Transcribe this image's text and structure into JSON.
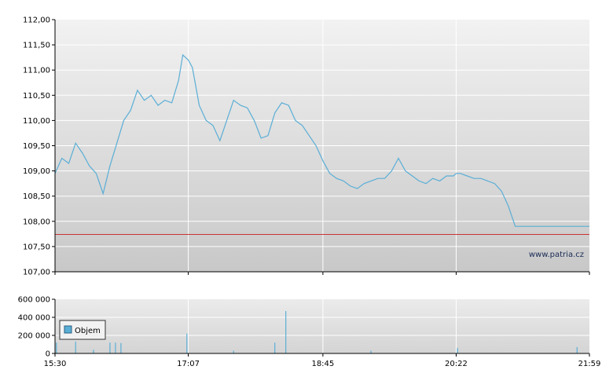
{
  "chart_data": [
    {
      "type": "line",
      "title": "",
      "xlabel": "",
      "ylabel": "",
      "ylim": [
        107.0,
        112.0
      ],
      "y_ticks": [
        "107,00",
        "107,50",
        "108,00",
        "108,50",
        "109,00",
        "109,50",
        "110,00",
        "110,50",
        "111,00",
        "111,50",
        "112,00"
      ],
      "x_ticks": [
        "15:30",
        "17:07",
        "18:45",
        "20:22",
        "21:59"
      ],
      "grid": true,
      "reference_line": {
        "value": 107.74,
        "color": "#cc3333"
      },
      "watermark": "www.patria.cz",
      "series": [
        {
          "color": "#5aaed6",
          "x": [
            "15:30",
            "15:35",
            "15:40",
            "15:45",
            "15:50",
            "15:55",
            "16:00",
            "16:05",
            "16:10",
            "16:15",
            "16:20",
            "16:25",
            "16:30",
            "16:35",
            "16:40",
            "16:45",
            "16:50",
            "16:55",
            "17:00",
            "17:03",
            "17:07",
            "17:10",
            "17:15",
            "17:20",
            "17:25",
            "17:30",
            "17:35",
            "17:40",
            "17:45",
            "17:50",
            "17:55",
            "18:00",
            "18:05",
            "18:10",
            "18:15",
            "18:20",
            "18:25",
            "18:30",
            "18:35",
            "18:40",
            "18:45",
            "18:50",
            "18:55",
            "19:00",
            "19:05",
            "19:10",
            "19:15",
            "19:20",
            "19:25",
            "19:30",
            "19:35",
            "19:40",
            "19:45",
            "19:50",
            "19:55",
            "20:00",
            "20:05",
            "20:10",
            "20:15",
            "20:20",
            "20:22",
            "20:25",
            "20:30",
            "20:35",
            "20:40",
            "20:45",
            "20:50",
            "20:55",
            "21:00",
            "21:05",
            "21:10",
            "21:15",
            "21:20",
            "21:25",
            "21:30",
            "21:35",
            "21:40",
            "21:45",
            "21:50",
            "21:55",
            "21:59"
          ],
          "values": [
            108.95,
            109.25,
            109.15,
            109.55,
            109.35,
            109.1,
            108.95,
            108.55,
            109.1,
            109.55,
            110.0,
            110.2,
            110.6,
            110.4,
            110.5,
            110.3,
            110.4,
            110.35,
            110.8,
            111.3,
            111.2,
            111.05,
            110.3,
            110.0,
            109.9,
            109.6,
            110.0,
            110.4,
            110.3,
            110.25,
            110.0,
            109.65,
            109.7,
            110.15,
            110.35,
            110.3,
            110.0,
            109.9,
            109.7,
            109.5,
            109.2,
            108.95,
            108.85,
            108.8,
            108.7,
            108.65,
            108.75,
            108.8,
            108.85,
            108.85,
            109.0,
            109.25,
            109.0,
            108.9,
            108.8,
            108.75,
            108.85,
            108.8,
            108.9,
            108.9,
            108.95,
            108.95,
            108.9,
            108.85,
            108.85,
            108.8,
            108.75,
            108.6,
            108.3,
            107.9,
            107.9,
            107.9,
            107.9,
            107.9,
            107.9,
            107.9,
            107.9,
            107.9,
            107.9,
            107.9,
            107.9
          ]
        }
      ]
    },
    {
      "type": "bar",
      "title": "",
      "xlabel": "",
      "ylabel": "",
      "ylim": [
        0,
        600000
      ],
      "y_ticks": [
        "0",
        "200 000",
        "400 000",
        "600 000"
      ],
      "x_ticks": [
        "15:30",
        "17:07",
        "18:45",
        "20:22",
        "21:59"
      ],
      "grid": true,
      "legend": "top-left",
      "series": [
        {
          "name": "Objem",
          "color": "#5aaed6",
          "x": [
            "15:31",
            "15:45",
            "15:58",
            "16:10",
            "16:14",
            "16:18",
            "17:06",
            "17:40",
            "18:10",
            "18:18",
            "19:20",
            "20:23",
            "21:50"
          ],
          "values": [
            120000,
            130000,
            40000,
            120000,
            120000,
            115000,
            220000,
            30000,
            120000,
            470000,
            30000,
            60000,
            70000
          ]
        }
      ]
    }
  ]
}
